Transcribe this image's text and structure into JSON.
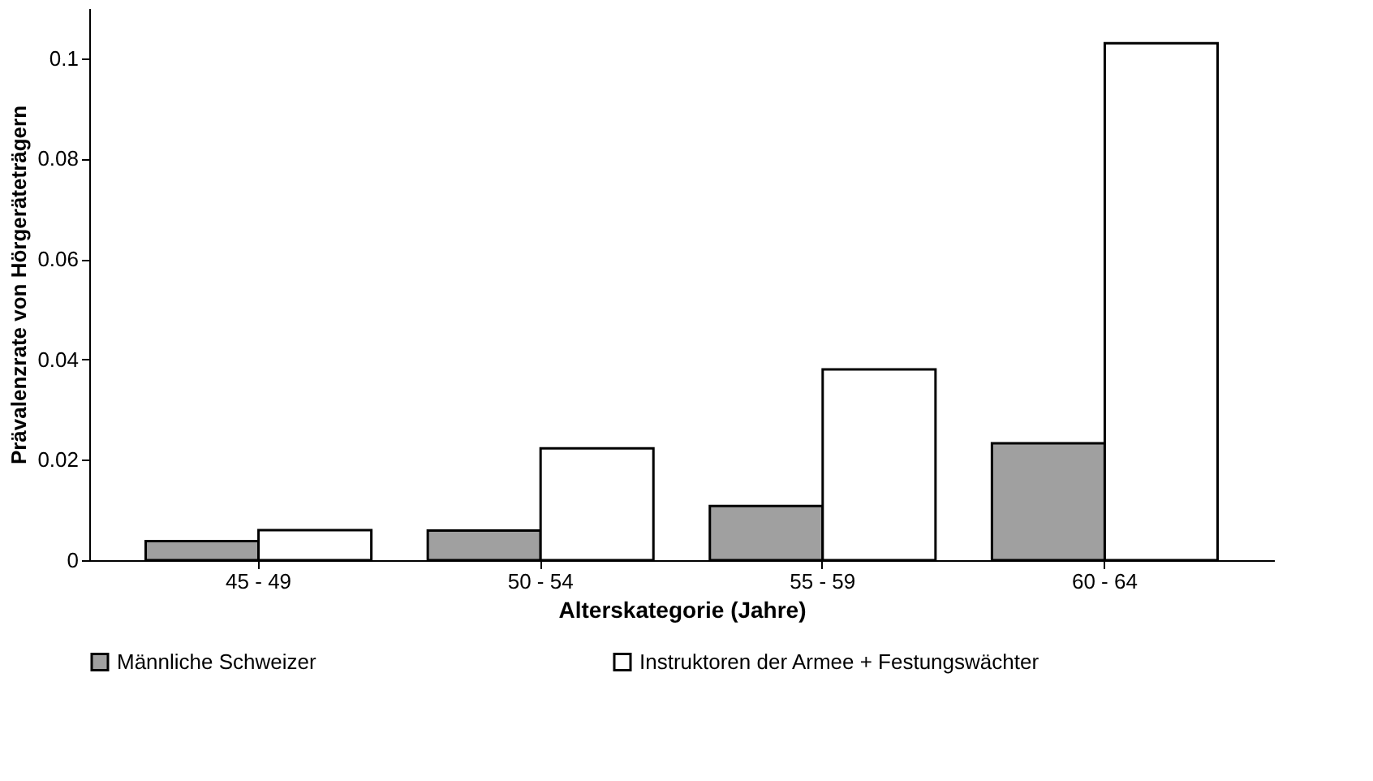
{
  "chart_data": {
    "type": "bar",
    "xlabel": "Alterskategorie (Jahre)",
    "ylabel": "Prävalenzrate von Hörgeräteträgern",
    "categories": [
      "45 - 49",
      "50 - 54",
      "55 - 59",
      "60 - 64"
    ],
    "series": [
      {
        "name": "Männliche Schweizer",
        "color": "#a0a0a0",
        "values": [
          0.0038,
          0.0059,
          0.0108,
          0.0233
        ]
      },
      {
        "name": "Instruktoren der Armee + Festungswächter",
        "color": "#ffffff",
        "values": [
          0.006,
          0.0223,
          0.038,
          0.103
        ]
      }
    ],
    "ylim": [
      0,
      0.11
    ],
    "yticks": [
      0,
      0.02,
      0.04,
      0.06,
      0.08,
      0.1
    ],
    "grid": false,
    "legend": "bottom"
  }
}
